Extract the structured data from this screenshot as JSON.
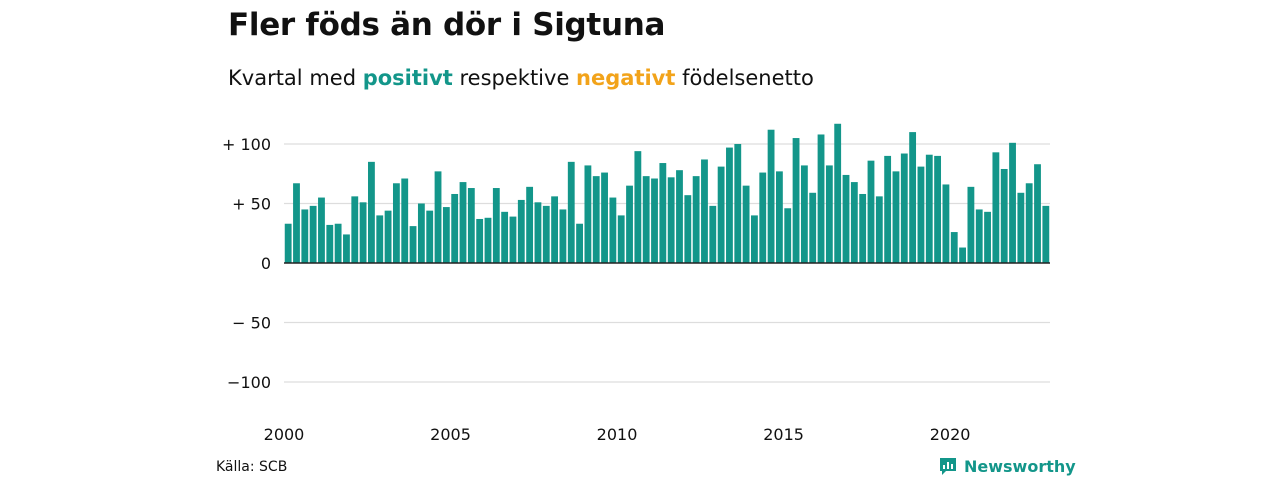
{
  "title": "Fler föds än dör i Sigtuna",
  "subtitle": {
    "prefix": "Kvartal med ",
    "positive": "positivt",
    "middle": " respektive ",
    "negative": "negativt",
    "suffix": " födelsenetto"
  },
  "source": "Källa: SCB",
  "brand": "Newsworthy",
  "colors": {
    "positive": "#13968a",
    "negative": "#f2a31a",
    "grid": "#dddddd",
    "axis": "#222222"
  },
  "chart_data": {
    "type": "bar",
    "title": "Fler föds än dör i Sigtuna",
    "ylim": [
      -100,
      120
    ],
    "ytick_labels": [
      {
        "value": 100,
        "label": "+ 100"
      },
      {
        "value": 50,
        "label": "+  50"
      },
      {
        "value": 0,
        "label": "0"
      },
      {
        "value": -50,
        "label": "− 50"
      },
      {
        "value": -100,
        "label": "−100"
      }
    ],
    "xtick_labels": [
      "2000",
      "2005",
      "2010",
      "2015",
      "2020"
    ],
    "x_start_year": 2000,
    "grid": true,
    "values": [
      33,
      67,
      45,
      48,
      55,
      32,
      33,
      24,
      56,
      51,
      85,
      40,
      44,
      67,
      71,
      31,
      50,
      44,
      77,
      47,
      58,
      68,
      63,
      37,
      38,
      63,
      43,
      39,
      53,
      64,
      51,
      48,
      56,
      45,
      85,
      33,
      82,
      73,
      76,
      55,
      40,
      65,
      94,
      73,
      71,
      84,
      72,
      78,
      57,
      73,
      87,
      48,
      81,
      97,
      100,
      65,
      40,
      76,
      112,
      77,
      46,
      105,
      82,
      59,
      108,
      82,
      117,
      74,
      68,
      58,
      86,
      56,
      90,
      77,
      92,
      110,
      81,
      91,
      90,
      66,
      26,
      13,
      64,
      45,
      43,
      93,
      79,
      101,
      59,
      67,
      83,
      48
    ]
  }
}
